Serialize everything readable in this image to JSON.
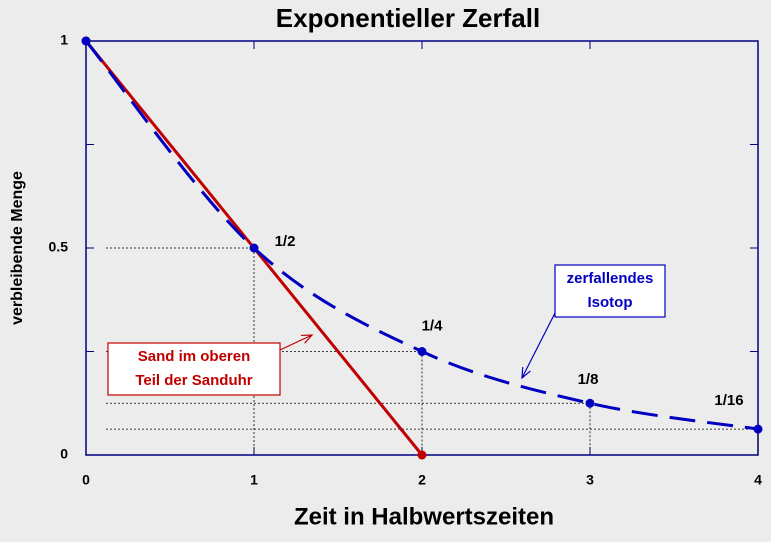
{
  "chart_data": {
    "type": "line",
    "title": "Exponentieller Zerfall",
    "x_label": "Zeit in Halbwertszeiten",
    "y_label": "verbleibende Menge",
    "xlim": [
      0,
      4
    ],
    "xticks": [
      0,
      1,
      2,
      3,
      4
    ],
    "ylim": [
      0,
      1
    ],
    "yticks": [
      0,
      0.5,
      1
    ],
    "yminorticks": [
      0.25,
      0.75
    ],
    "series": [
      {
        "color": "#c00000",
        "style": "solid",
        "x": [
          0,
          2
        ],
        "values": [
          1,
          0
        ]
      },
      {
        "color": "#0000c0",
        "style": "dashed",
        "x": [
          0,
          1,
          2,
          3,
          4
        ],
        "values": [
          1,
          0.5,
          0.25,
          0.125,
          0.0625
        ],
        "value_labels": [
          null,
          "1/2",
          "1/4",
          "1/8",
          "1/16"
        ]
      }
    ],
    "annotations": [
      {
        "lines": [
          "Sand im oberen",
          "Teil der Sanduhr"
        ],
        "color": "#c00000"
      },
      {
        "lines": [
          "zerfallendes",
          "Isotop"
        ],
        "color": "#0000c0"
      }
    ]
  }
}
